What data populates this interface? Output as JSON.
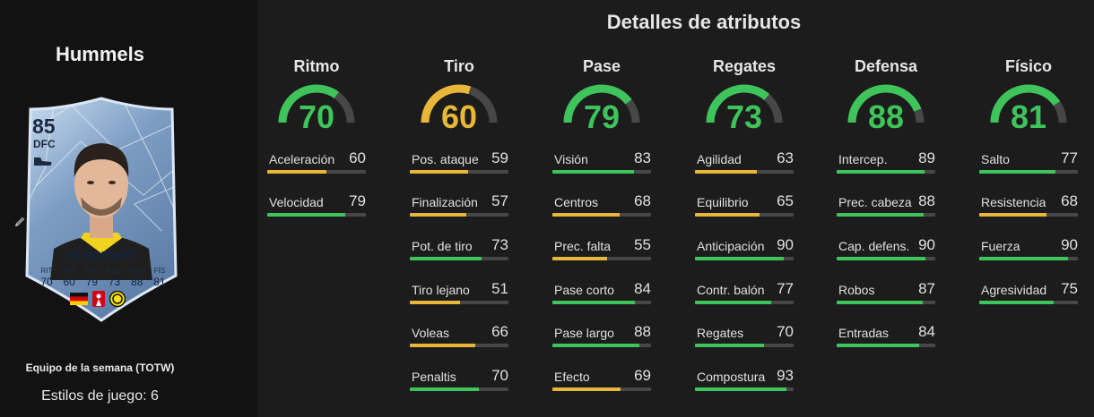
{
  "player": {
    "name": "Hummels",
    "card": {
      "rating": "85",
      "position": "DFC",
      "name": "Hummels",
      "stats": [
        {
          "label": "RIT",
          "value": "70"
        },
        {
          "label": "TIR",
          "value": "60"
        },
        {
          "label": "PAS",
          "value": "79"
        },
        {
          "label": "REG",
          "value": "73"
        },
        {
          "label": "DEF",
          "value": "88"
        },
        {
          "label": "FÍS",
          "value": "81"
        }
      ]
    },
    "edition": "Equipo de la semana (TOTW)",
    "playstyles": "Estilos de juego: 6"
  },
  "title": "Detalles de atributos",
  "colors": {
    "green": "#3ec45a",
    "yellow": "#e8b73a",
    "track": "#474747",
    "card_blue": "#6d8fb8"
  },
  "categories": [
    {
      "label": "Ritmo",
      "value": "70",
      "stats": [
        {
          "label": "Aceleración",
          "value": "60"
        },
        {
          "label": "Velocidad",
          "value": "79"
        }
      ]
    },
    {
      "label": "Tiro",
      "value": "60",
      "stats": [
        {
          "label": "Pos. ataque",
          "value": "59"
        },
        {
          "label": "Finalización",
          "value": "57"
        },
        {
          "label": "Pot. de tiro",
          "value": "73"
        },
        {
          "label": "Tiro lejano",
          "value": "51"
        },
        {
          "label": "Voleas",
          "value": "66"
        },
        {
          "label": "Penaltis",
          "value": "70"
        }
      ]
    },
    {
      "label": "Pase",
      "value": "79",
      "stats": [
        {
          "label": "Visión",
          "value": "83"
        },
        {
          "label": "Centros",
          "value": "68"
        },
        {
          "label": "Prec. falta",
          "value": "55"
        },
        {
          "label": "Pase corto",
          "value": "84"
        },
        {
          "label": "Pase largo",
          "value": "88"
        },
        {
          "label": "Efecto",
          "value": "69"
        }
      ]
    },
    {
      "label": "Regates",
      "value": "73",
      "stats": [
        {
          "label": "Agilidad",
          "value": "63"
        },
        {
          "label": "Equilibrio",
          "value": "65"
        },
        {
          "label": "Anticipación",
          "value": "90"
        },
        {
          "label": "Contr. balón",
          "value": "77"
        },
        {
          "label": "Regates",
          "value": "70"
        },
        {
          "label": "Compostura",
          "value": "93"
        }
      ]
    },
    {
      "label": "Defensa",
      "value": "88",
      "stats": [
        {
          "label": "Intercep.",
          "value": "89"
        },
        {
          "label": "Prec. cabeza",
          "value": "88"
        },
        {
          "label": "Cap. defens.",
          "value": "90"
        },
        {
          "label": "Robos",
          "value": "87"
        },
        {
          "label": "Entradas",
          "value": "84"
        }
      ]
    },
    {
      "label": "Físico",
      "value": "81",
      "stats": [
        {
          "label": "Salto",
          "value": "77"
        },
        {
          "label": "Resistencia",
          "value": "68"
        },
        {
          "label": "Fuerza",
          "value": "90"
        },
        {
          "label": "Agresividad",
          "value": "75"
        }
      ]
    }
  ]
}
